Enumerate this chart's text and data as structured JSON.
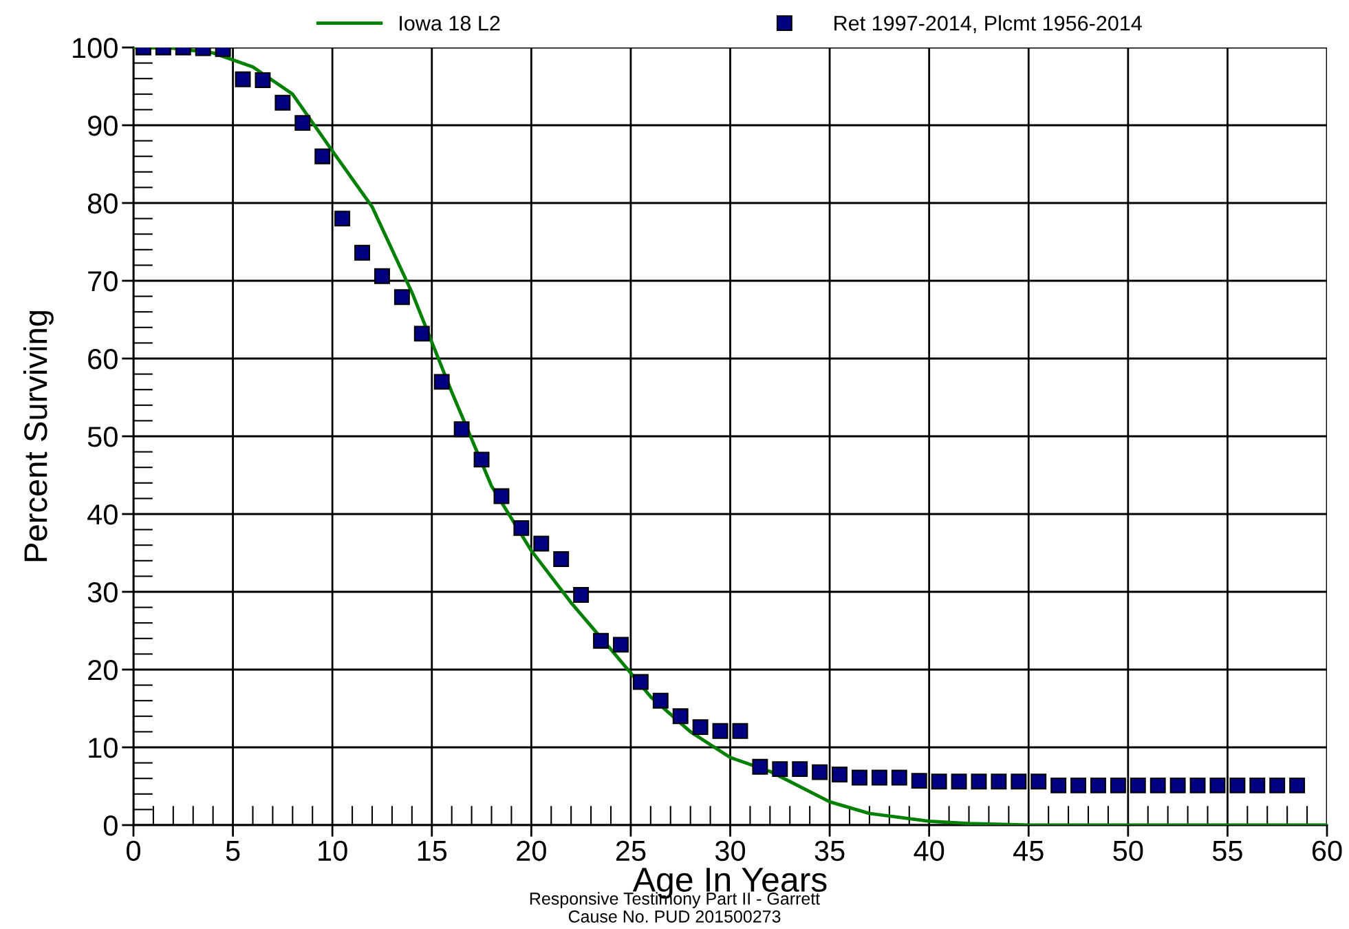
{
  "chart_data": {
    "type": "scatter",
    "xlabel": "Age In Years",
    "ylabel": "Percent Surviving",
    "xlim": [
      0,
      60
    ],
    "ylim": [
      0,
      100
    ],
    "xticks": [
      0,
      5,
      10,
      15,
      20,
      25,
      30,
      35,
      40,
      45,
      50,
      55,
      60
    ],
    "yticks": [
      0,
      10,
      20,
      30,
      40,
      50,
      60,
      70,
      80,
      90,
      100
    ],
    "grid": true,
    "legend": "top",
    "series": [
      {
        "name": "Iowa 18 L2",
        "type": "line",
        "color": "#008000",
        "marker": "none",
        "line_style": "solid",
        "x": [
          0,
          2,
          4,
          6,
          8,
          10,
          12,
          14,
          16,
          18,
          20,
          22,
          24,
          26,
          28,
          30,
          32,
          35,
          37,
          40,
          42,
          45,
          50,
          55,
          60
        ],
        "values": [
          100,
          99.9,
          99.3,
          97.5,
          94,
          86.7,
          79.5,
          68.5,
          55.7,
          43.6,
          35.3,
          28.6,
          22.6,
          16.5,
          12,
          8.7,
          6.9,
          3,
          1.5,
          0.5,
          0.2,
          0,
          0,
          0,
          0
        ]
      },
      {
        "name": "Ret 1997-2014, Plcmt 1956-2014",
        "color": "#000080",
        "marker": "square",
        "x": [
          0.5,
          1.5,
          2.5,
          3.5,
          4.5,
          5.5,
          6.5,
          7.5,
          8.5,
          9.5,
          10.5,
          11.5,
          12.5,
          13.5,
          14.5,
          15.5,
          16.5,
          17.5,
          18.5,
          19.5,
          20.5,
          21.5,
          22.5,
          23.5,
          24.5,
          25.5,
          26.5,
          27.5,
          28.5,
          29.5,
          30.5,
          31.5,
          32.5,
          33.5,
          34.5,
          35.5,
          36.5,
          37.5,
          38.5,
          39.5,
          40.5,
          41.5,
          42.5,
          43.5,
          44.5,
          45.5,
          46.5,
          47.5,
          48.5,
          49.5,
          50.5,
          51.5,
          52.5,
          53.5,
          54.5,
          55.5,
          56.5,
          57.5,
          58.5
        ],
        "values": [
          100,
          100,
          100,
          99.9,
          99.8,
          95.9,
          95.8,
          92.9,
          90.3,
          86,
          78,
          73.6,
          70.6,
          67.9,
          63.2,
          57,
          50.9,
          47,
          42.3,
          38.2,
          36.2,
          34.2,
          29.6,
          23.7,
          23.2,
          18.4,
          16,
          14,
          12.6,
          12.1,
          12.1,
          7.5,
          7.2,
          7.2,
          6.8,
          6.5,
          6.1,
          6.1,
          6.1,
          5.7,
          5.6,
          5.6,
          5.6,
          5.6,
          5.6,
          5.6,
          5.1,
          5.1,
          5.1,
          5.1,
          5.1,
          5.1,
          5.1,
          5.1,
          5.1,
          5.1,
          5.1,
          5.1,
          5.1
        ]
      }
    ],
    "annotations": [
      "Responsive Testimony Part II - Garrett",
      "Cause No. PUD 201500273"
    ]
  }
}
